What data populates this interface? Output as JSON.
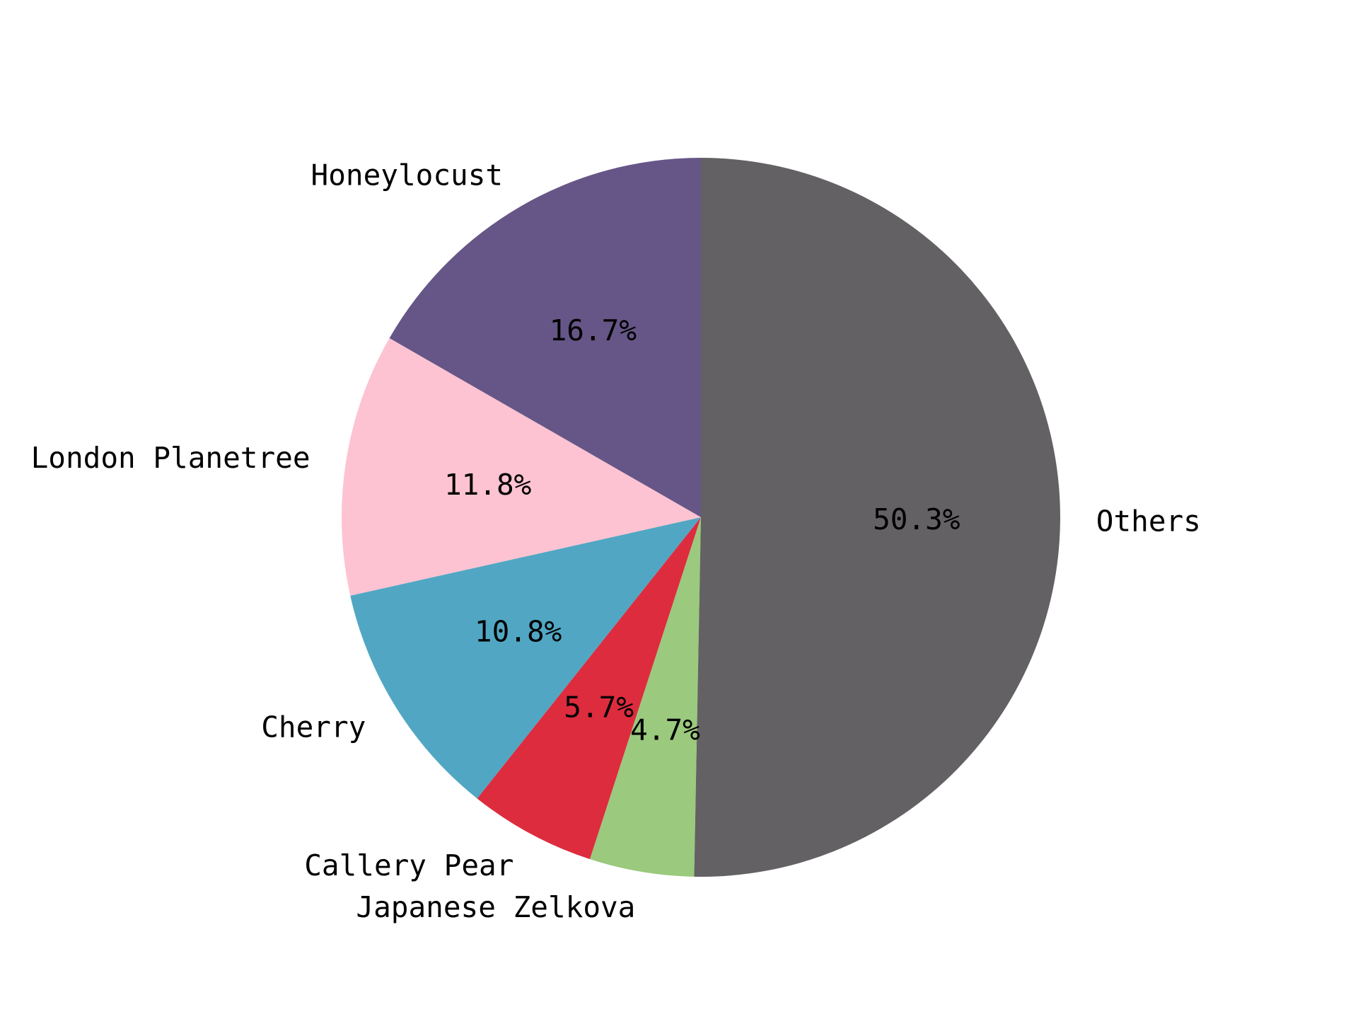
{
  "chart_data": {
    "type": "pie",
    "title": "",
    "start_angle_deg": 90,
    "direction": "counterclockwise",
    "slices": [
      {
        "label": "Honeylocust",
        "value": 16.7,
        "pct_label": "16.7%",
        "color": "#665687"
      },
      {
        "label": "London Planetree",
        "value": 11.8,
        "pct_label": "11.8%",
        "color": "#fdc3d2"
      },
      {
        "label": "Cherry",
        "value": 10.8,
        "pct_label": "10.8%",
        "color": "#51a7c3"
      },
      {
        "label": "Callery Pear",
        "value": 5.7,
        "pct_label": "5.7%",
        "color": "#dd2c3e"
      },
      {
        "label": "Japanese Zelkova",
        "value": 4.7,
        "pct_label": "4.7%",
        "color": "#9bc97d"
      },
      {
        "label": "Others",
        "value": 50.3,
        "pct_label": "50.3%",
        "color": "#636164"
      }
    ]
  }
}
